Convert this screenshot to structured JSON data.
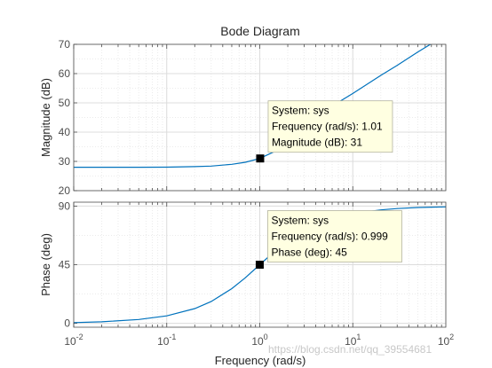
{
  "chart_data": {
    "type": "line",
    "title": "Bode Diagram",
    "xlabel": "Frequency  (rad/s)",
    "x_scale": "log",
    "xlim": [
      0.01,
      100
    ],
    "x_ticks": [
      {
        "value": 0.01,
        "base": "10",
        "exp": "-2"
      },
      {
        "value": 0.1,
        "base": "10",
        "exp": "-1"
      },
      {
        "value": 1,
        "base": "10",
        "exp": "0"
      },
      {
        "value": 10,
        "base": "10",
        "exp": "1"
      },
      {
        "value": 100,
        "base": "10",
        "exp": "2"
      }
    ],
    "grid": true,
    "line_color": "#0072bd",
    "panels": [
      {
        "ylabel": "Magnitude (dB)",
        "ylim": [
          20,
          70
        ],
        "y_ticks": [
          "20",
          "30",
          "40",
          "50",
          "60",
          "70"
        ],
        "series": [
          {
            "x": [
              0.01,
              0.02,
              0.05,
              0.1,
              0.2,
              0.3,
              0.5,
              0.7,
              1,
              1.5,
              2,
              3,
              5,
              7,
              10,
              20,
              30,
              50,
              70,
              100
            ],
            "y": [
              28,
              28,
              28.01,
              28.04,
              28.2,
              28.4,
              29,
              29.7,
              31,
              33.6,
              36,
              40.2,
              46.1,
              50.2,
              53.2,
              59.4,
              62.8,
              67.4,
              70.2,
              73.2
            ]
          }
        ],
        "datatip": {
          "x": 1.01,
          "y": 31,
          "lines": [
            "System: sys",
            "Frequency (rad/s): 1.01",
            "Magnitude (dB): 31"
          ]
        }
      },
      {
        "ylabel": "Phase (deg)",
        "ylim": [
          -3,
          93
        ],
        "y_ticks": [
          "0",
          "45",
          "90"
        ],
        "series": [
          {
            "x": [
              0.01,
              0.02,
              0.05,
              0.1,
              0.2,
              0.3,
              0.5,
              0.7,
              1,
              1.5,
              2,
              3,
              5,
              7,
              10,
              20,
              30,
              50,
              70,
              100
            ],
            "y": [
              0.57,
              1.15,
              2.9,
              5.7,
              11.3,
              16.7,
              26.6,
              35,
              45,
              56.3,
              63.4,
              71.6,
              78.7,
              81.9,
              84.3,
              87.1,
              88.1,
              88.9,
              89.2,
              89.4
            ]
          }
        ],
        "datatip": {
          "x": 0.999,
          "y": 45,
          "lines": [
            "System: sys",
            "Frequency (rad/s): 0.999",
            "Phase (deg): 45"
          ]
        }
      }
    ]
  },
  "watermark": "https://blog.csdn.net/qq_39554681"
}
